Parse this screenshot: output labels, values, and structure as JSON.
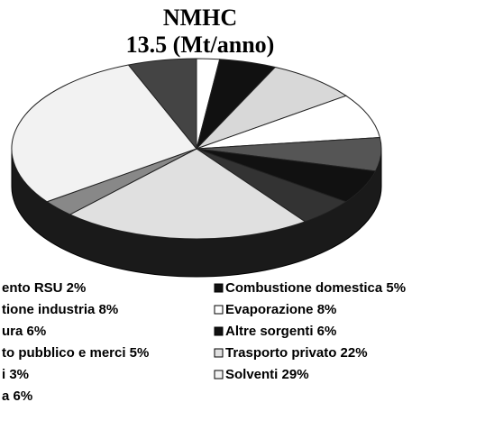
{
  "chart_data": {
    "type": "pie",
    "title": "NMHC",
    "subtitle": "13.5 (Mt/anno)",
    "categories": [
      "ento RSU 2%",
      "Combustione domestica 5%",
      "tione industria 8%",
      "Evaporazione 8%",
      "ura 6%",
      "Altre sorgenti 6%",
      "to pubblico e merci 5%",
      "Trasporto privato 22%",
      "i 3%",
      "Solventi 29%",
      "a 6%"
    ],
    "values": [
      2,
      5,
      8,
      8,
      6,
      6,
      5,
      22,
      3,
      29,
      6
    ],
    "colors": [
      "#ffffff",
      "#111111",
      "#d8d8d8",
      "#ffffff",
      "#555555",
      "#111111",
      "#333333",
      "#e0e0e0",
      "#888888",
      "#f2f2f2",
      "#444444"
    ]
  }
}
